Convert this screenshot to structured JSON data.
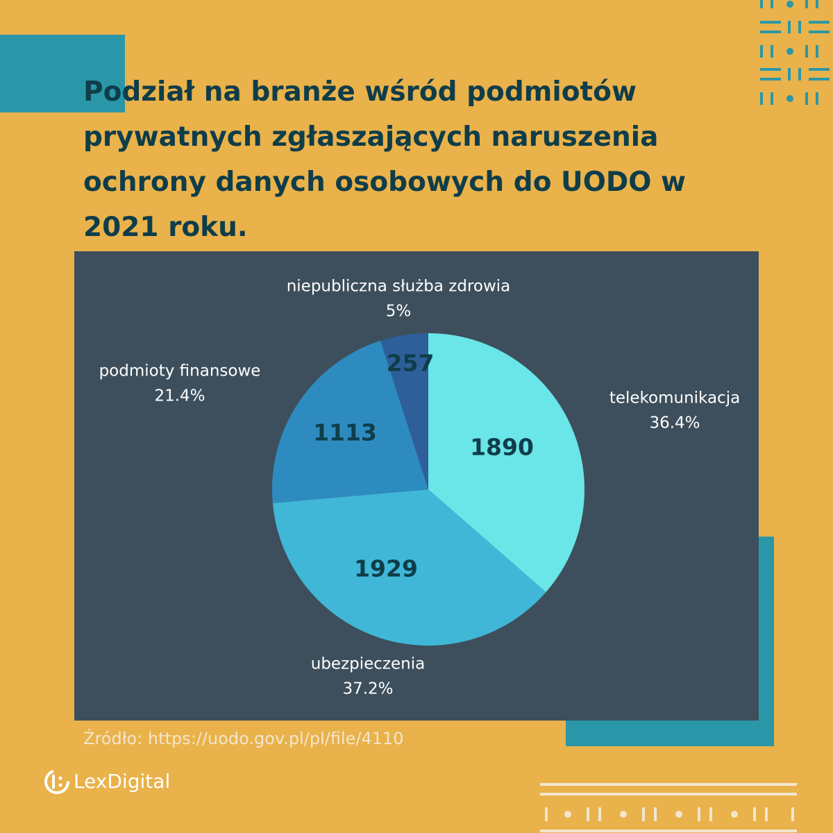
{
  "chart_data": {
    "type": "pie",
    "title": "Podział na branże wśród podmiotów prywatnych zgłaszających naruszenia ochrony danych osobowych do UODO w 2021 roku.",
    "categories": [
      "telekomunikacja",
      "ubezpieczenia",
      "podmioty finansowe",
      "niepubliczna służba zdrowia"
    ],
    "values": [
      1890,
      1929,
      1113,
      257
    ],
    "percent_labels": [
      "36.4%",
      "37.2%",
      "21.4%",
      "5%"
    ],
    "colors": [
      "#6ae5e8",
      "#40b7d7",
      "#2e8bbf",
      "#2e5f9a"
    ],
    "source": "Źródło: https://uodo.gov.pl/pl/file/4110"
  },
  "brand": "LexDigital"
}
